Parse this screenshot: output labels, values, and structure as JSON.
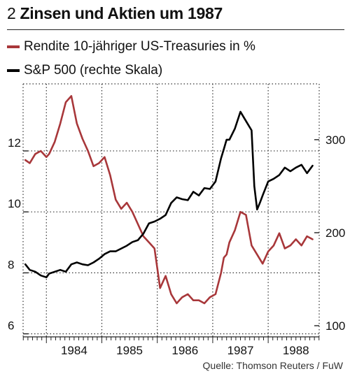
{
  "header": {
    "number": "2",
    "title": "Zinsen und Aktien um 1987"
  },
  "source": "Quelle: Thomson Reuters / FuW",
  "colors": {
    "yield": "#a8373a",
    "sp500": "#000000",
    "grid": "#333333"
  },
  "chart_data": {
    "type": "line",
    "title": "Zinsen und Aktien um 1987",
    "x_ticks": [
      "1984",
      "1985",
      "1986",
      "1987",
      "1988"
    ],
    "x_range": [
      1983.58,
      1988.92
    ],
    "left_axis": {
      "ticks": [
        "6",
        "8",
        "10",
        "12"
      ],
      "range": [
        5.9,
        14.2
      ]
    },
    "right_axis": {
      "ticks": [
        "100",
        "200",
        "300"
      ],
      "range": [
        88,
        360
      ]
    },
    "grid": "dotted",
    "legend_placement": "top-left",
    "series": [
      {
        "name": "Rendite 10-jähriger US-Treasuries in %",
        "axis": "left",
        "color": "#a8373a",
        "x": [
          1983.62,
          1983.7,
          1983.8,
          1983.9,
          1984.0,
          1984.05,
          1984.15,
          1984.25,
          1984.35,
          1984.45,
          1984.55,
          1984.65,
          1984.75,
          1984.85,
          1984.95,
          1985.05,
          1985.15,
          1985.25,
          1985.35,
          1985.45,
          1985.55,
          1985.65,
          1985.75,
          1985.85,
          1985.95,
          1986.05,
          1986.15,
          1986.25,
          1986.35,
          1986.45,
          1986.55,
          1986.65,
          1986.75,
          1986.85,
          1986.95,
          1987.05,
          1987.15,
          1987.2,
          1987.25,
          1987.3,
          1987.4,
          1987.5,
          1987.6,
          1987.7,
          1987.8,
          1987.9,
          1988.0,
          1988.1,
          1988.2,
          1988.3,
          1988.4,
          1988.5,
          1988.6,
          1988.7,
          1988.8
        ],
        "y": [
          11.7,
          11.6,
          11.9,
          12.0,
          11.8,
          11.9,
          12.3,
          12.9,
          13.6,
          13.8,
          12.9,
          12.4,
          12.0,
          11.5,
          11.6,
          11.8,
          11.2,
          10.4,
          10.1,
          10.3,
          10.0,
          9.6,
          9.2,
          9.0,
          8.8,
          7.5,
          7.9,
          7.3,
          7.0,
          7.2,
          7.3,
          7.1,
          7.1,
          7.0,
          7.2,
          7.3,
          8.0,
          8.5,
          8.6,
          9.0,
          9.4,
          10.0,
          9.9,
          8.9,
          8.6,
          8.3,
          8.7,
          8.9,
          9.3,
          8.8,
          8.9,
          9.1,
          8.9,
          9.2,
          9.1
        ]
      },
      {
        "name": "S&P 500 (rechte Skala)",
        "axis": "right",
        "color": "#000000",
        "x": [
          1983.62,
          1983.7,
          1983.8,
          1983.9,
          1984.0,
          1984.05,
          1984.15,
          1984.25,
          1984.35,
          1984.45,
          1984.55,
          1984.65,
          1984.75,
          1984.85,
          1984.95,
          1985.05,
          1985.15,
          1985.25,
          1985.35,
          1985.45,
          1985.55,
          1985.65,
          1985.75,
          1985.85,
          1985.95,
          1986.05,
          1986.15,
          1986.25,
          1986.35,
          1986.45,
          1986.55,
          1986.65,
          1986.75,
          1986.85,
          1986.95,
          1987.05,
          1987.15,
          1987.2,
          1987.25,
          1987.3,
          1987.4,
          1987.5,
          1987.6,
          1987.7,
          1987.75,
          1987.8,
          1987.85,
          1987.9,
          1988.0,
          1988.1,
          1988.2,
          1988.3,
          1988.4,
          1988.5,
          1988.6,
          1988.7,
          1988.8
        ],
        "y": [
          166,
          160,
          158,
          154,
          152,
          156,
          158,
          160,
          158,
          166,
          168,
          166,
          165,
          168,
          172,
          177,
          180,
          180,
          183,
          186,
          190,
          192,
          199,
          210,
          212,
          215,
          219,
          232,
          238,
          236,
          235,
          244,
          240,
          248,
          247,
          255,
          280,
          290,
          300,
          300,
          312,
          330,
          320,
          310,
          250,
          225,
          232,
          240,
          255,
          258,
          262,
          270,
          266,
          270,
          273,
          264,
          272
        ]
      }
    ]
  }
}
